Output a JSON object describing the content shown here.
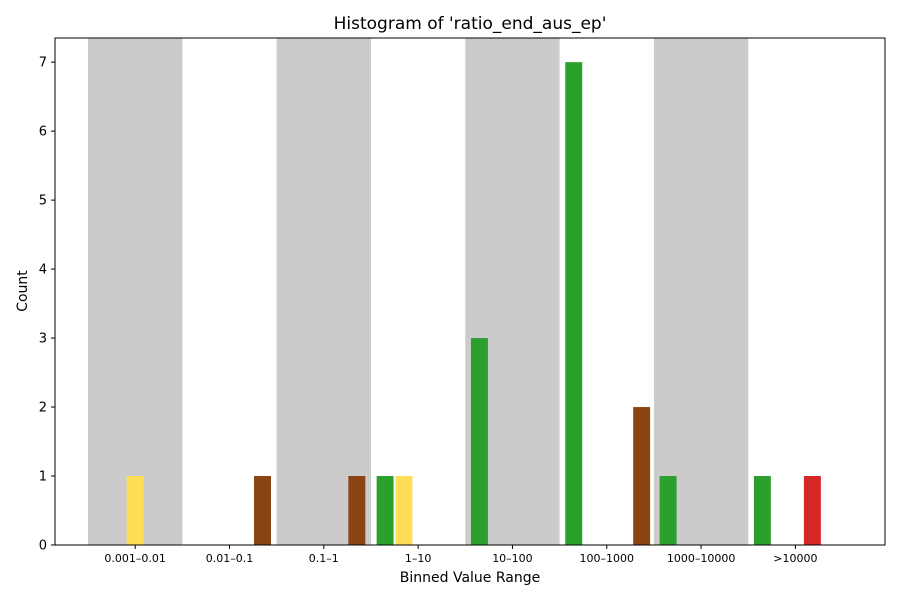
{
  "chart_data": {
    "type": "bar",
    "title": "Histogram of 'ratio_end_aus_ep'",
    "xlabel": "Binned Value Range",
    "ylabel": "Count",
    "ylim": [
      0,
      7.35
    ],
    "yticks": [
      0,
      1,
      2,
      3,
      4,
      5,
      6,
      7
    ],
    "grid": false,
    "categories": [
      "0.001–0.01",
      "0.01–0.1",
      "0.1–1",
      "1–10",
      "10–100",
      "100–1000",
      "1000–10000",
      ">10000"
    ],
    "shaded_bands": [
      0,
      2,
      4,
      6
    ],
    "band_color": "#cbcbcb",
    "bars": [
      {
        "x": 0.0,
        "value": 1,
        "color": "#ffdd57"
      },
      {
        "x": 1.35,
        "value": 1,
        "color": "#8b4513"
      },
      {
        "x": 2.35,
        "value": 1,
        "color": "#8b4513"
      },
      {
        "x": 2.65,
        "value": 1,
        "color": "#2ca02c"
      },
      {
        "x": 2.85,
        "value": 1,
        "color": "#ffdd57"
      },
      {
        "x": 3.65,
        "value": 3,
        "color": "#2ca02c"
      },
      {
        "x": 4.65,
        "value": 7,
        "color": "#2ca02c"
      },
      {
        "x": 5.37,
        "value": 2,
        "color": "#8b4513"
      },
      {
        "x": 5.65,
        "value": 1,
        "color": "#2ca02c"
      },
      {
        "x": 6.65,
        "value": 1,
        "color": "#2ca02c"
      },
      {
        "x": 7.18,
        "value": 1,
        "color": "#d62728"
      }
    ]
  }
}
